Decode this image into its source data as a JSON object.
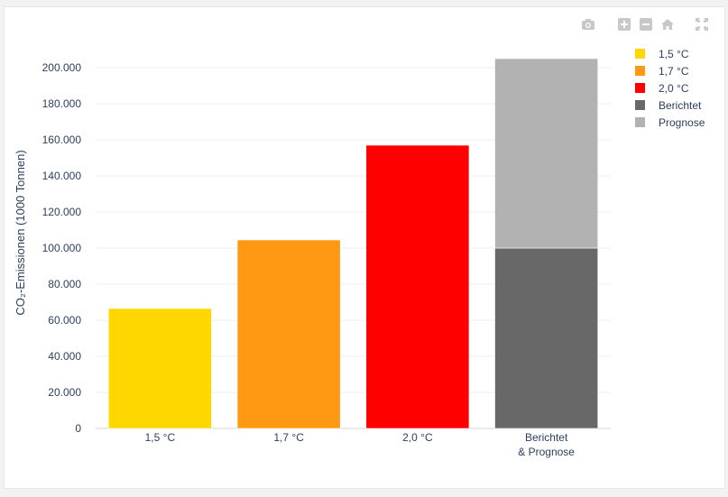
{
  "toolbar": {
    "icons": [
      "camera-icon",
      "zoom-in-icon",
      "zoom-out-icon",
      "home-icon",
      "autoscale-icon"
    ]
  },
  "chart_data": {
    "type": "bar",
    "barmode": "stack",
    "categories": [
      [
        "1,5 °C"
      ],
      [
        "1,7 °C"
      ],
      [
        "2,0 °C"
      ],
      [
        "Berichtet",
        "& Prognose"
      ]
    ],
    "series": [
      {
        "name": "1,5 °C",
        "color": "#ffd700",
        "values": [
          66500,
          0,
          0,
          0
        ]
      },
      {
        "name": "1,7 °C",
        "color": "#ff9914",
        "values": [
          0,
          104500,
          0,
          0
        ]
      },
      {
        "name": "2,0 °C",
        "color": "#ff0000",
        "values": [
          0,
          0,
          157000,
          0
        ]
      },
      {
        "name": "Berichtet",
        "color": "#686868",
        "values": [
          0,
          0,
          0,
          100000
        ]
      },
      {
        "name": "Prognose",
        "color": "#b2b2b2",
        "values": [
          0,
          0,
          0,
          105000
        ]
      }
    ],
    "ylabel": "CO₂-Emissionen (1000 Tonnen)",
    "ylim": [
      0,
      200000
    ],
    "yticks": [
      0,
      20000,
      40000,
      60000,
      80000,
      100000,
      120000,
      140000,
      160000,
      180000,
      200000
    ],
    "ytick_labels": [
      "0",
      "20.000",
      "40.000",
      "60.000",
      "80.000",
      "100.000",
      "120.000",
      "140.000",
      "160.000",
      "180.000",
      "200.000"
    ],
    "grid": true,
    "legend": "right"
  }
}
